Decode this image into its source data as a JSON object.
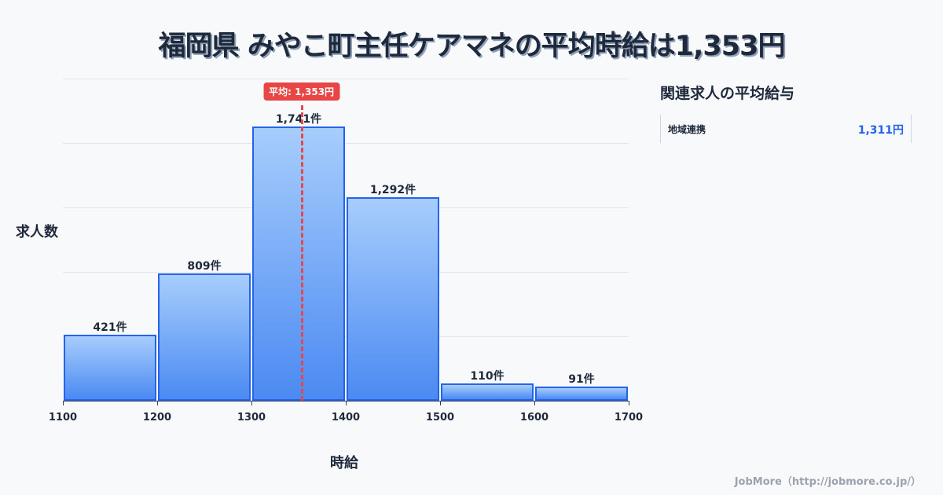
{
  "title": "福岡県 みやこ町主任ケアマネの平均時給は1,353円",
  "chart_data": {
    "type": "bar",
    "title": "福岡県 みやこ町主任ケアマネの平均時給は1,353円",
    "xlabel": "時給",
    "ylabel": "求人数",
    "categories": [
      "1100-1200",
      "1200-1300",
      "1300-1400",
      "1400-1500",
      "1500-1600",
      "1600-1700"
    ],
    "bin_edges": [
      1100,
      1200,
      1300,
      1400,
      1500,
      1600,
      1700
    ],
    "values": [
      421,
      809,
      1741,
      1292,
      110,
      91
    ],
    "value_labels": [
      "421件",
      "809件",
      "1,741件",
      "1,292件",
      "110件",
      "91件"
    ],
    "x_ticks": [
      "1100",
      "1200",
      "1300",
      "1400",
      "1500",
      "1600",
      "1700"
    ],
    "xlim": [
      1100,
      1700
    ],
    "ylim": [
      0,
      2045
    ],
    "grid": true,
    "mean": 1353,
    "mean_label": "平均: 1,353円",
    "bar_color": "#4b8af2",
    "bar_border": "#2563eb",
    "mean_color": "#e84545"
  },
  "axis": {
    "xlabel": "時給",
    "ylabel": "求人数"
  },
  "sidebar": {
    "title": "関連求人の平均給与",
    "items": [
      {
        "name": "地域連携",
        "value": "1,311円"
      }
    ]
  },
  "footer": "JobMore（http://jobmore.co.jp/）"
}
